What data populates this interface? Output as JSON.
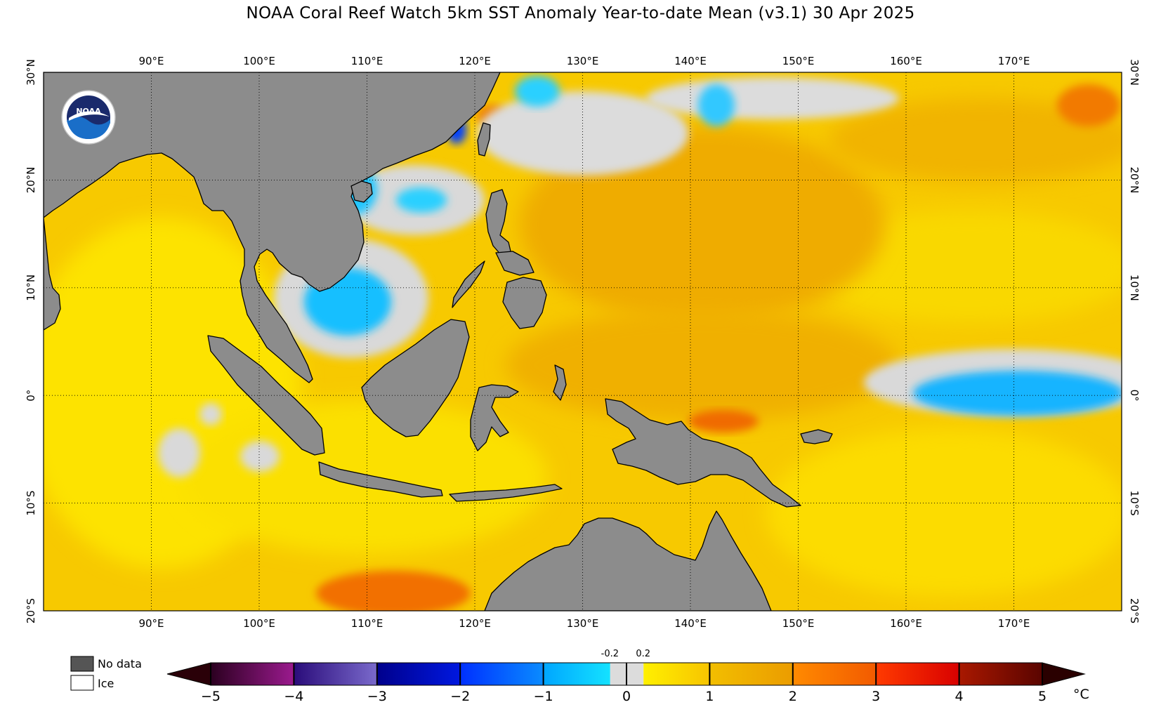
{
  "title": "NOAA Coral Reef Watch 5km SST Anomaly Year-to-date Mean  (v3.1)   30 Apr 2025",
  "logo_text": "NOAA",
  "map": {
    "lon_range": [
      80,
      180
    ],
    "lat_range": [
      -20,
      30
    ],
    "lon_ticks": [
      {
        "value": 90,
        "label": "90°E"
      },
      {
        "value": 100,
        "label": "100°E"
      },
      {
        "value": 110,
        "label": "110°E"
      },
      {
        "value": 120,
        "label": "120°E"
      },
      {
        "value": 130,
        "label": "130°E"
      },
      {
        "value": 140,
        "label": "140°E"
      },
      {
        "value": 150,
        "label": "150°E"
      },
      {
        "value": 160,
        "label": "160°E"
      },
      {
        "value": 170,
        "label": "170°E"
      }
    ],
    "lat_ticks": [
      {
        "value": 30,
        "label": "30°N"
      },
      {
        "value": 20,
        "label": "20°N"
      },
      {
        "value": 10,
        "label": "10°N"
      },
      {
        "value": 0,
        "label": "0°"
      },
      {
        "value": -10,
        "label": "10°S"
      },
      {
        "value": -20,
        "label": "20°S"
      }
    ],
    "land_color": "#8c8c8c",
    "ocean_base_color": "#f2c200",
    "gridlines": "dotted"
  },
  "legend_key": {
    "no_data_label": "No data",
    "no_data_color": "#555555",
    "ice_label": "Ice",
    "ice_color": "#ffffff"
  },
  "colorbar": {
    "unit": "°C",
    "range": [
      -5,
      5
    ],
    "tick_values": [
      -5,
      -4,
      -3,
      -2,
      -1,
      0,
      1,
      2,
      3,
      4,
      5
    ],
    "tick_labels": [
      "−5",
      "−4",
      "−3",
      "−2",
      "−1",
      "0",
      "1",
      "2",
      "3",
      "4",
      "5"
    ],
    "small_labels": [
      {
        "value": -0.2,
        "label": "-0.2"
      },
      {
        "value": 0.2,
        "label": "0.2"
      }
    ],
    "under_color": "#2a0008",
    "over_color": "#2a0000"
  }
}
